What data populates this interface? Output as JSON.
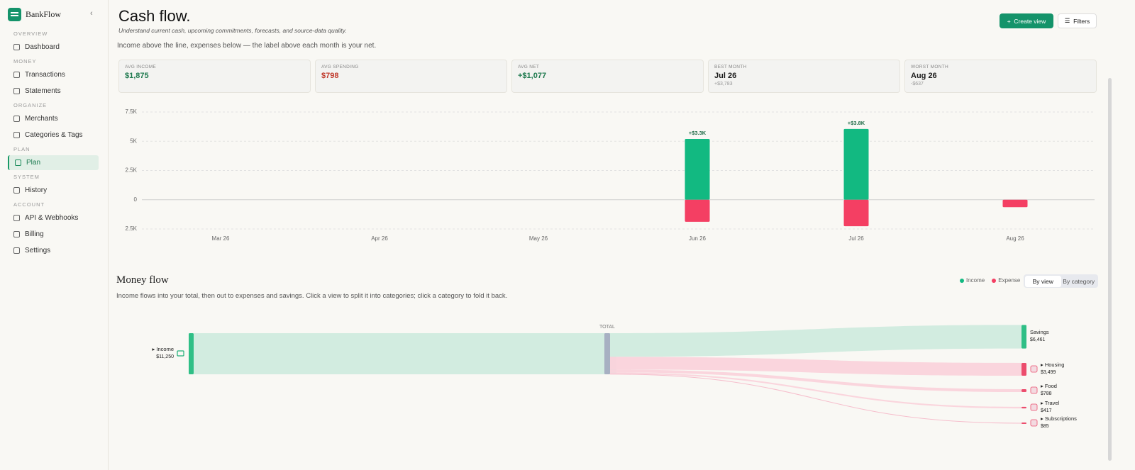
{
  "sidebar": {
    "brand": "BankFlow",
    "active": "Plan",
    "sections": [
      {
        "heading": "OVERVIEW",
        "items": [
          "Dashboard"
        ]
      },
      {
        "heading": "MONEY",
        "items": [
          "Transactions",
          "Statements"
        ]
      },
      {
        "heading": "ORGANIZE",
        "items": [
          "Merchants",
          "Categories & Tags"
        ]
      },
      {
        "heading": "PLAN",
        "items": [
          "Plan"
        ]
      },
      {
        "heading": "SYSTEM",
        "items": [
          "History"
        ]
      },
      {
        "heading": "ACCOUNT",
        "items": [
          "API & Webhooks",
          "Billing",
          "Settings"
        ]
      }
    ]
  },
  "header": {
    "title": "Cash flow.",
    "subtitle": "Understand current cash, upcoming commitments, forecasts, and source-data quality.",
    "buttons": [
      "Create view",
      "Filters"
    ]
  },
  "cash_flow": {
    "caption": "Income above the line, expenses below — the label above each month is your net.",
    "stats": [
      {
        "label": "AVG INCOME",
        "value": "$1,875",
        "color": "#1f7a4f"
      },
      {
        "label": "AVG SPENDING",
        "value": "$798",
        "color": "#c0392b"
      },
      {
        "label": "AVG NET",
        "value": "+$1,077",
        "color": "#1f7a4f"
      },
      {
        "label": "BEST MONTH",
        "value": "Jul 26",
        "detail": "+$3,783",
        "color": "#1c1c1c"
      },
      {
        "label": "WORST MONTH",
        "value": "Aug 26",
        "detail": "-$637",
        "color": "#1c1c1c"
      }
    ]
  },
  "chart_data": {
    "type": "bar",
    "categories": [
      "Mar 26",
      "Apr 26",
      "May 26",
      "Jun 26",
      "Jul 26",
      "Aug 26"
    ],
    "series": [
      {
        "name": "Income",
        "color": "#12b981",
        "values": [
          null,
          null,
          null,
          5200,
          6050,
          null
        ]
      },
      {
        "name": "Expense",
        "color": "#f43f63",
        "values": [
          null,
          null,
          null,
          -1885,
          -2267,
          -637
        ]
      }
    ],
    "net_labels": [
      null,
      null,
      null,
      "+$3.3K",
      "+$3.8K",
      null
    ],
    "ylim": [
      -2500,
      7500
    ],
    "yticks": [
      {
        "value": 7500,
        "label": "7.5K"
      },
      {
        "value": 5000,
        "label": "5K"
      },
      {
        "value": 2500,
        "label": "2.5K"
      },
      0,
      {
        "value": -2500,
        "label": "2.5K"
      }
    ],
    "grid": true
  },
  "money_flow": {
    "title": "Money flow",
    "description": "Income flows into your total, then out to expenses and savings. Click a view to split it into categories; click a category to fold it back.",
    "legend": [
      {
        "name": "Income",
        "color": "#12b981"
      },
      {
        "name": "Expense",
        "color": "#f43f63"
      }
    ],
    "toggle": [
      "By view",
      "By category"
    ],
    "toggle_active": "By view",
    "sankey": {
      "source": {
        "label": "▸ Income",
        "value": 11250,
        "value_label": "$11,250",
        "color": "#2fbf86"
      },
      "center": {
        "label": "TOTAL",
        "color": "#a7b0c2"
      },
      "targets": [
        {
          "label": "Savings",
          "value": 6461,
          "value_label": "$6,461",
          "color": "#2fbf86"
        },
        {
          "label": "▸ Housing",
          "value": 3499,
          "value_label": "$3,499",
          "color": "#ec4d6d"
        },
        {
          "label": "▸ Food",
          "value": 788,
          "value_label": "$788",
          "color": "#ec4d6d"
        },
        {
          "label": "▸ Travel",
          "value": 417,
          "value_label": "$417",
          "color": "#ec4d6d"
        },
        {
          "label": "▸ Subscriptions",
          "value": 85,
          "value_label": "$85",
          "color": "#ec4d6d"
        }
      ]
    }
  }
}
